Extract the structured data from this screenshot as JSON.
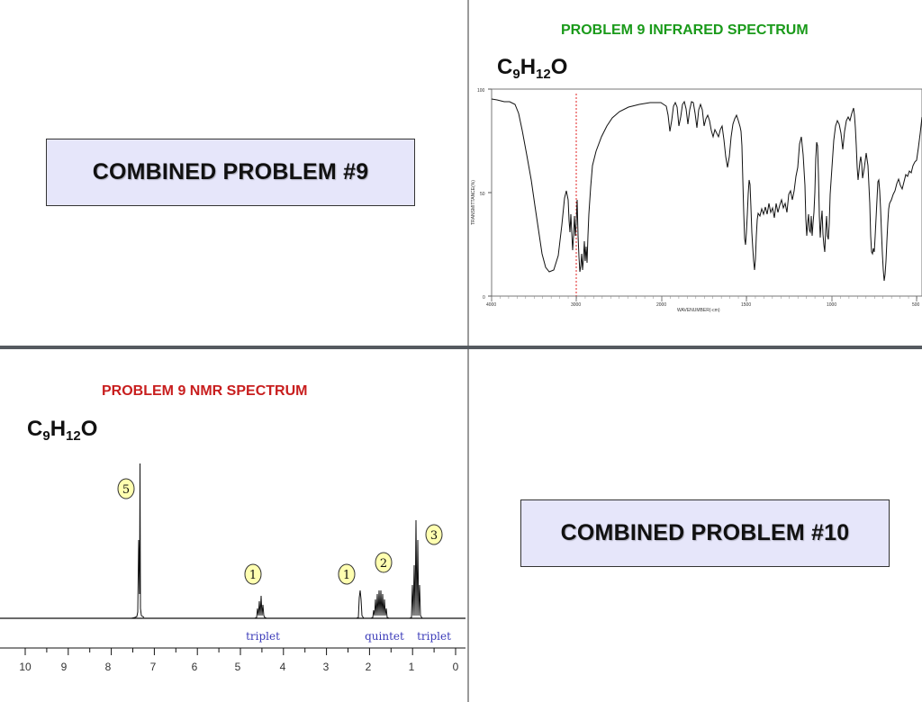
{
  "quadrants": {
    "top_left": {
      "title": "COMBINED PROBLEM #9"
    },
    "bottom_right": {
      "title": "COMBINED PROBLEM #10"
    }
  },
  "ir": {
    "heading": "PROBLEM  9   INFRARED SPECTRUM",
    "heading_color": "#1a9a1a",
    "formula": {
      "c": "C",
      "c_sub": "9",
      "h": "H",
      "h_sub": "12",
      "o": "O"
    },
    "y_tick_labels": [
      "100",
      "50",
      "0"
    ],
    "x_tick_labels": [
      "4000",
      "3000",
      "2000",
      "1500",
      "1000",
      "500"
    ],
    "y_axis_label": "TRANSMITTANCE(%)",
    "x_axis_label": "WAVENUMBER(-cm)",
    "marker_color": "#e02020"
  },
  "nmr": {
    "heading": "PROBLEM  9   NMR SPECTRUM",
    "heading_color": "#c81e1e",
    "formula": {
      "c": "C",
      "c_sub": "9",
      "h": "H",
      "h_sub": "12",
      "o": "O"
    },
    "integrations": [
      "5",
      "1",
      "1",
      "2",
      "3"
    ],
    "multiplicities": [
      "triplet",
      "quintet",
      "triplet"
    ],
    "axis_ticks": [
      "10",
      "9",
      "8",
      "7",
      "6",
      "5",
      "4",
      "3",
      "2",
      "1",
      "0"
    ],
    "label_color": "#3a3ab8",
    "bubble_color": "#ffffb0"
  }
}
